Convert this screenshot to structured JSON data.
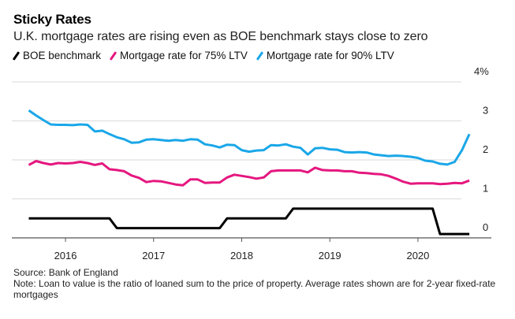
{
  "header": {
    "title": "Sticky Rates",
    "subtitle": "U.K. mortgage rates are rising even as BOE benchmark stays close to zero"
  },
  "footer": {
    "source": "Source: Bank of England",
    "note": "Note: Loan to value is the ratio of loaned sum to the price of property. Average rates shown are for 2-year fixed-rate mortgages"
  },
  "chart_data": {
    "type": "line",
    "title": "Sticky Rates",
    "subtitle": "U.K. mortgage rates are rising even as BOE benchmark stays close to zero",
    "xlabel": "",
    "ylabel": "",
    "x_start": "2015-08",
    "x_end": "2020-08",
    "x_frequency": "monthly",
    "x_ticks": [
      "2016",
      "2017",
      "2018",
      "2019",
      "2020"
    ],
    "y_ticks": [
      "0",
      "1",
      "2",
      "3",
      "4%"
    ],
    "ylim": [
      0,
      4
    ],
    "y_axis_side": "right",
    "grid": true,
    "legend_position": "top-left",
    "series": [
      {
        "name": "BOE benchmark",
        "color": "#000000",
        "values": [
          0.5,
          0.5,
          0.5,
          0.5,
          0.5,
          0.5,
          0.5,
          0.5,
          0.5,
          0.5,
          0.5,
          0.5,
          0.25,
          0.25,
          0.25,
          0.25,
          0.25,
          0.25,
          0.25,
          0.25,
          0.25,
          0.25,
          0.25,
          0.25,
          0.25,
          0.25,
          0.25,
          0.5,
          0.5,
          0.5,
          0.5,
          0.5,
          0.5,
          0.5,
          0.5,
          0.5,
          0.75,
          0.75,
          0.75,
          0.75,
          0.75,
          0.75,
          0.75,
          0.75,
          0.75,
          0.75,
          0.75,
          0.75,
          0.75,
          0.75,
          0.75,
          0.75,
          0.75,
          0.75,
          0.75,
          0.75,
          0.1,
          0.1,
          0.1,
          0.1,
          0.1
        ]
      },
      {
        "name": "Mortgage rate for 75% LTV",
        "color": "#e5177f",
        "values": [
          1.87,
          1.97,
          1.92,
          1.88,
          1.92,
          1.91,
          1.92,
          1.95,
          1.92,
          1.87,
          1.91,
          1.76,
          1.74,
          1.71,
          1.6,
          1.54,
          1.43,
          1.46,
          1.45,
          1.41,
          1.37,
          1.35,
          1.5,
          1.5,
          1.41,
          1.42,
          1.42,
          1.55,
          1.62,
          1.59,
          1.56,
          1.52,
          1.55,
          1.71,
          1.73,
          1.73,
          1.73,
          1.73,
          1.68,
          1.8,
          1.74,
          1.73,
          1.73,
          1.71,
          1.71,
          1.67,
          1.66,
          1.64,
          1.63,
          1.59,
          1.52,
          1.44,
          1.39,
          1.4,
          1.4,
          1.4,
          1.38,
          1.39,
          1.41,
          1.4,
          1.47
        ]
      },
      {
        "name": "Mortgage rate for 90% LTV",
        "color": "#1aa7e8",
        "values": [
          3.27,
          3.14,
          3.02,
          2.91,
          2.9,
          2.9,
          2.89,
          2.91,
          2.9,
          2.73,
          2.75,
          2.66,
          2.58,
          2.53,
          2.44,
          2.45,
          2.52,
          2.53,
          2.51,
          2.49,
          2.51,
          2.49,
          2.53,
          2.52,
          2.4,
          2.37,
          2.32,
          2.39,
          2.38,
          2.25,
          2.21,
          2.24,
          2.25,
          2.38,
          2.37,
          2.4,
          2.34,
          2.31,
          2.14,
          2.3,
          2.31,
          2.27,
          2.26,
          2.2,
          2.19,
          2.2,
          2.19,
          2.14,
          2.12,
          2.1,
          2.11,
          2.1,
          2.08,
          2.05,
          1.98,
          1.96,
          1.9,
          1.88,
          1.95,
          2.25,
          2.66
        ]
      }
    ]
  }
}
